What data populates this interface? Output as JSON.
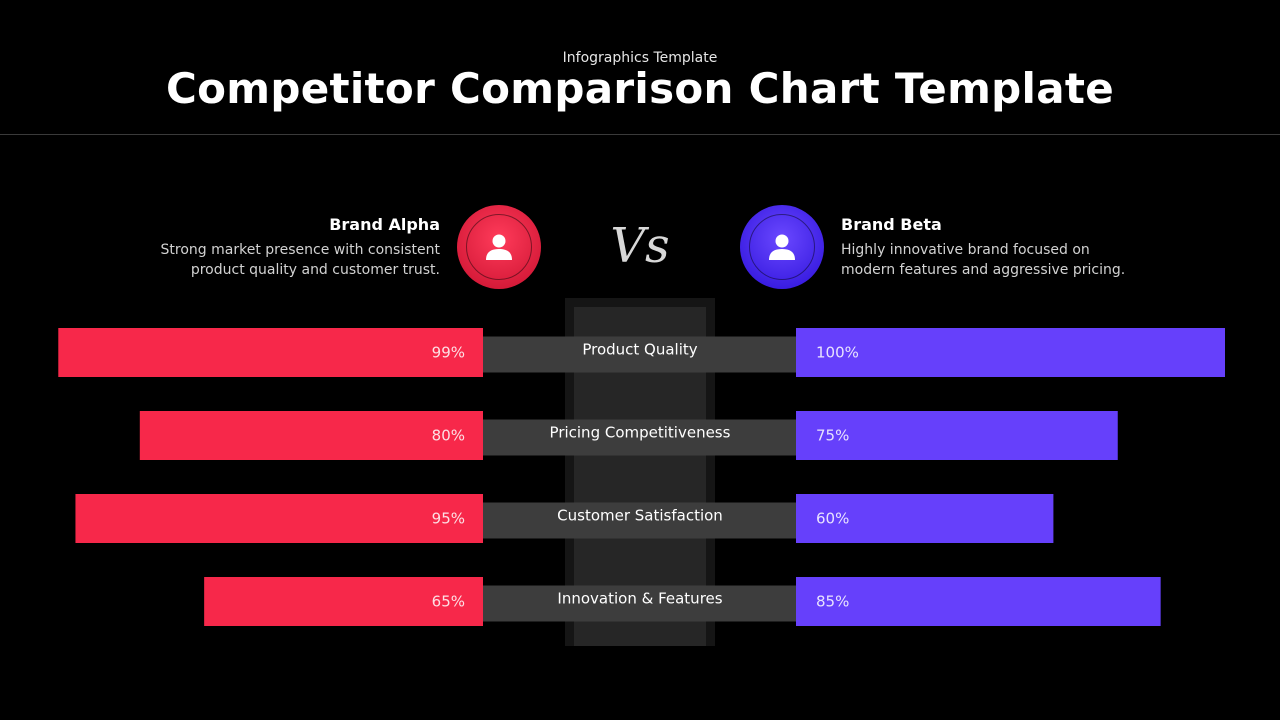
{
  "header": {
    "subtitle": "Infographics Template",
    "title": "Competitor Comparison Chart Template"
  },
  "brands": {
    "alpha": {
      "name": "Brand Alpha",
      "description": "Strong market presence with consistent product quality and customer trust.",
      "color": "#f7284a",
      "icon": "user-icon"
    },
    "beta": {
      "name": "Brand Beta",
      "description": "Highly innovative brand focused on modern features and aggressive pricing.",
      "color": "#6640fb",
      "icon": "user-icon"
    }
  },
  "vs_label": "Vs",
  "chart_data": {
    "type": "bar",
    "categories": [
      "Product Quality",
      "Pricing Competitiveness",
      "Customer Satisfaction",
      "Innovation & Features"
    ],
    "series": [
      {
        "name": "Brand Alpha",
        "values": [
          99,
          80,
          95,
          65
        ],
        "labels": [
          "99%",
          "80%",
          "95%",
          "65%"
        ],
        "color": "#f7284a"
      },
      {
        "name": "Brand Beta",
        "values": [
          100,
          75,
          60,
          85
        ],
        "labels": [
          "100%",
          "75%",
          "60%",
          "85%"
        ],
        "color": "#6640fb"
      }
    ],
    "ylim": [
      0,
      100
    ]
  }
}
